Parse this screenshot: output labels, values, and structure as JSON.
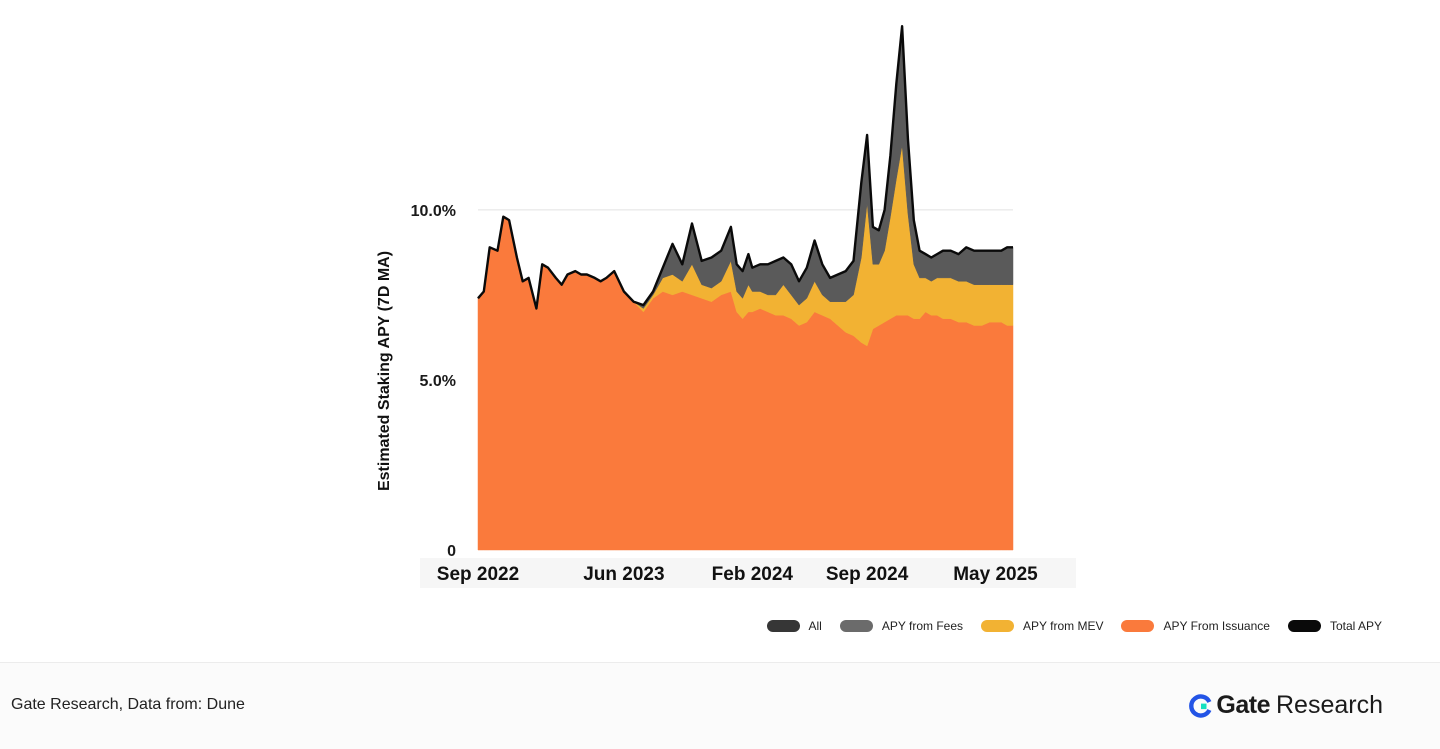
{
  "chart_data": {
    "type": "area",
    "stacked": true,
    "ylabel": "Estimated Staking APY (7D MA)",
    "yticks": [
      {
        "value": 0,
        "label": "0"
      },
      {
        "value": 5,
        "label": "5.0%"
      },
      {
        "value": 10,
        "label": "10.0%"
      }
    ],
    "ylim": [
      0,
      14.7
    ],
    "xlim": [
      2022.67,
      2025.42
    ],
    "xticks": [
      {
        "value": 2022.67,
        "label": "Sep 2022"
      },
      {
        "value": 2023.42,
        "label": "Jun 2023"
      },
      {
        "value": 2024.08,
        "label": "Feb 2024"
      },
      {
        "value": 2024.67,
        "label": "Sep 2024"
      },
      {
        "value": 2025.33,
        "label": "May 2025"
      }
    ],
    "grid": "y-major",
    "x": [
      2022.67,
      2022.7,
      2022.73,
      2022.77,
      2022.8,
      2022.83,
      2022.87,
      2022.9,
      2022.93,
      2022.97,
      2023.0,
      2023.03,
      2023.07,
      2023.1,
      2023.13,
      2023.17,
      2023.2,
      2023.23,
      2023.27,
      2023.3,
      2023.33,
      2023.37,
      2023.42,
      2023.47,
      2023.52,
      2023.57,
      2023.62,
      2023.67,
      2023.72,
      2023.77,
      2023.82,
      2023.87,
      2023.92,
      2023.97,
      2024.0,
      2024.03,
      2024.06,
      2024.08,
      2024.12,
      2024.16,
      2024.2,
      2024.24,
      2024.28,
      2024.32,
      2024.36,
      2024.4,
      2024.44,
      2024.48,
      2024.52,
      2024.56,
      2024.6,
      2024.64,
      2024.67,
      2024.7,
      2024.73,
      2024.76,
      2024.79,
      2024.82,
      2024.85,
      2024.88,
      2024.91,
      2024.94,
      2024.97,
      2025.0,
      2025.03,
      2025.06,
      2025.1,
      2025.14,
      2025.18,
      2025.22,
      2025.26,
      2025.3,
      2025.33,
      2025.36,
      2025.39,
      2025.42
    ],
    "series": [
      {
        "name": "APY From Issuance",
        "color": "#fa7a3c",
        "values": [
          7.4,
          7.6,
          8.9,
          8.8,
          9.8,
          9.7,
          8.6,
          7.9,
          8.0,
          7.1,
          8.4,
          8.3,
          8.0,
          7.8,
          8.1,
          8.2,
          8.1,
          8.1,
          8.0,
          7.9,
          8.0,
          8.2,
          7.6,
          7.3,
          7.0,
          7.4,
          7.6,
          7.5,
          7.6,
          7.5,
          7.4,
          7.3,
          7.5,
          7.6,
          7.0,
          6.8,
          7.0,
          7.0,
          7.1,
          7.0,
          6.9,
          6.9,
          6.8,
          6.6,
          6.7,
          7.0,
          6.9,
          6.8,
          6.6,
          6.4,
          6.3,
          6.1,
          6.0,
          6.5,
          6.6,
          6.7,
          6.8,
          6.9,
          6.9,
          6.9,
          6.8,
          6.8,
          7.0,
          6.9,
          6.9,
          6.8,
          6.8,
          6.7,
          6.7,
          6.6,
          6.6,
          6.7,
          6.7,
          6.7,
          6.6,
          6.6
        ]
      },
      {
        "name": "APY from MEV",
        "color": "#f2b233",
        "values": [
          0,
          0,
          0,
          0,
          0,
          0,
          0,
          0,
          0,
          0,
          0,
          0,
          0,
          0,
          0,
          0,
          0,
          0,
          0,
          0,
          0,
          0,
          0,
          0,
          0.1,
          0.1,
          0.4,
          0.6,
          0.3,
          0.9,
          0.4,
          0.4,
          0.4,
          0.9,
          0.6,
          0.6,
          0.8,
          0.6,
          0.5,
          0.5,
          0.6,
          0.9,
          0.7,
          0.6,
          0.7,
          0.9,
          0.6,
          0.5,
          0.7,
          0.9,
          1.2,
          2.5,
          4.2,
          1.9,
          1.8,
          2.1,
          3.0,
          4.0,
          5.0,
          3.0,
          1.6,
          1.2,
          1.0,
          1.0,
          1.1,
          1.2,
          1.2,
          1.2,
          1.2,
          1.2,
          1.2,
          1.1,
          1.1,
          1.1,
          1.2,
          1.2
        ]
      },
      {
        "name": "APY from Fees",
        "color": "#5a5a5a",
        "values": [
          0,
          0,
          0,
          0,
          0,
          0,
          0,
          0,
          0,
          0,
          0,
          0,
          0,
          0,
          0,
          0,
          0,
          0,
          0,
          0,
          0,
          0,
          0,
          0,
          0.1,
          0.1,
          0.3,
          0.9,
          0.5,
          1.2,
          0.7,
          0.9,
          0.9,
          1.0,
          0.8,
          0.8,
          0.9,
          0.7,
          0.8,
          0.9,
          1.0,
          0.8,
          0.9,
          0.7,
          0.9,
          1.2,
          0.9,
          0.7,
          0.8,
          0.9,
          1.0,
          2.2,
          2.0,
          1.1,
          1.0,
          1.2,
          1.8,
          2.8,
          3.5,
          2.2,
          1.3,
          0.8,
          0.7,
          0.7,
          0.7,
          0.8,
          0.8,
          0.8,
          1.0,
          1.0,
          1.0,
          1.0,
          1.0,
          1.0,
          1.1,
          1.1
        ]
      }
    ],
    "total_line": {
      "name": "Total APY",
      "color": "#0a0a0a"
    },
    "legend": [
      {
        "label": "All",
        "color": "#363636"
      },
      {
        "label": "APY from Fees",
        "color": "#6b6b6b"
      },
      {
        "label": "APY from MEV",
        "color": "#f2b233"
      },
      {
        "label": "APY From Issuance",
        "color": "#fa7a3c"
      },
      {
        "label": "Total APY",
        "color": "#0a0a0a"
      }
    ],
    "legend_position": "bottom-right"
  },
  "footer": {
    "source": "Gate Research, Data from: Dune",
    "brand_gate": "Gate",
    "brand_research": "Research",
    "brand_accent": "#2354e6",
    "brand_accent2": "#17e0c0"
  }
}
